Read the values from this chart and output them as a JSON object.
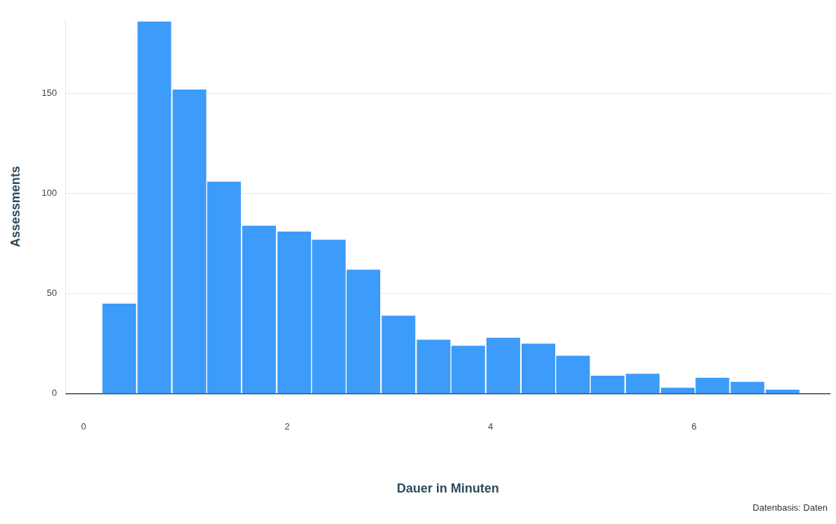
{
  "chart_data": {
    "type": "histogram",
    "xlabel": "Dauer in Minuten",
    "ylabel": "Assessments",
    "annotations": [
      "Datenbasis: Daten"
    ],
    "bins": [
      0.18,
      0.52,
      0.87,
      1.21,
      1.55,
      1.9,
      2.24,
      2.58,
      2.92,
      3.27,
      3.61,
      3.95,
      4.3,
      4.64,
      4.98,
      5.32,
      5.67,
      6.01,
      6.35,
      6.7,
      7.04
    ],
    "values": [
      45,
      186,
      152,
      106,
      84,
      81,
      77,
      62,
      39,
      27,
      24,
      28,
      25,
      19,
      9,
      10,
      3,
      8,
      6,
      2
    ],
    "color": "#3d9bfa",
    "xlim": [
      -0.18,
      7.34
    ],
    "xticks": [
      0,
      2,
      4,
      6
    ],
    "ylim": [
      0,
      187
    ],
    "yticks": [
      0,
      50,
      100,
      150
    ],
    "grid": "y",
    "legend": false
  }
}
